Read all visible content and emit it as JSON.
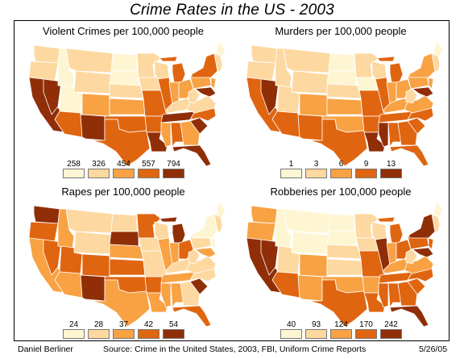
{
  "title": "Crime Rates in the US - 2003",
  "footer": {
    "author": "Daniel Berliner",
    "source": "Source: Crime in the United States, 2003, FBI, Uniform Crime Reports",
    "date": "5/26/05"
  },
  "palette": [
    "#fef6d3",
    "#fdd8a0",
    "#f8a244",
    "#e06510",
    "#902e08"
  ],
  "panels": [
    {
      "title": "Violent Crimes per 100,000 people",
      "legend": [
        "258",
        "326",
        "454",
        "557",
        "794"
      ],
      "states": {
        "WA": 1,
        "OR": 1,
        "CA": 4,
        "NV": 4,
        "ID": 0,
        "MT": 1,
        "WY": 1,
        "UT": 0,
        "AZ": 3,
        "CO": 2,
        "NM": 4,
        "ND": 0,
        "SD": 0,
        "NE": 1,
        "KS": 2,
        "OK": 3,
        "TX": 3,
        "MN": 1,
        "IA": 1,
        "MO": 3,
        "AR": 3,
        "LA": 4,
        "WI": 1,
        "IL": 3,
        "MI": 3,
        "IN": 2,
        "OH": 2,
        "KY": 1,
        "TN": 4,
        "MS": 2,
        "AL": 3,
        "GA": 2,
        "FL": 4,
        "SC": 4,
        "NC": 3,
        "VA": 1,
        "WV": 1,
        "PA": 2,
        "NY": 3,
        "ME": 0,
        "NE_ENG": 1,
        "NJ": 2,
        "MD": 4
      }
    },
    {
      "title": "Murders per 100,000 people",
      "legend": [
        "1",
        "3",
        "6",
        "9",
        "13"
      ],
      "states": {
        "WA": 1,
        "OR": 1,
        "CA": 3,
        "NV": 4,
        "ID": 1,
        "MT": 1,
        "WY": 1,
        "UT": 1,
        "AZ": 3,
        "CO": 2,
        "NM": 3,
        "ND": 0,
        "SD": 0,
        "NE": 1,
        "KS": 2,
        "OK": 2,
        "TX": 3,
        "MN": 1,
        "IA": 0,
        "MO": 3,
        "AR": 3,
        "LA": 4,
        "WI": 1,
        "IL": 3,
        "MI": 3,
        "IN": 2,
        "OH": 2,
        "KY": 2,
        "TN": 3,
        "MS": 4,
        "AL": 3,
        "GA": 3,
        "FL": 3,
        "SC": 3,
        "NC": 3,
        "VA": 2,
        "WV": 1,
        "PA": 2,
        "NY": 2,
        "ME": 0,
        "NE_ENG": 1,
        "NJ": 2,
        "MD": 4
      }
    },
    {
      "title": "Rapes per 100,000 people",
      "legend": [
        "24",
        "28",
        "37",
        "42",
        "54"
      ],
      "states": {
        "WA": 4,
        "OR": 3,
        "CA": 2,
        "NV": 3,
        "ID": 2,
        "MT": 1,
        "WY": 1,
        "UT": 3,
        "AZ": 2,
        "CO": 3,
        "NM": 4,
        "ND": 1,
        "SD": 4,
        "NE": 2,
        "KS": 3,
        "OK": 3,
        "TX": 2,
        "MN": 3,
        "IA": 1,
        "MO": 1,
        "AR": 3,
        "LA": 2,
        "WI": 1,
        "IL": 2,
        "MI": 4,
        "IN": 2,
        "OH": 3,
        "KY": 1,
        "TN": 2,
        "MS": 2,
        "AL": 2,
        "GA": 1,
        "FL": 3,
        "SC": 4,
        "NC": 1,
        "VA": 1,
        "WV": 1,
        "PA": 1,
        "NY": 0,
        "ME": 0,
        "NE_ENG": 1,
        "NJ": 0,
        "MD": 2
      }
    },
    {
      "title": "Robberies per 100,000 people",
      "legend": [
        "40",
        "93",
        "124",
        "170",
        "242"
      ],
      "states": {
        "WA": 2,
        "OR": 2,
        "CA": 4,
        "NV": 4,
        "ID": 0,
        "MT": 0,
        "WY": 0,
        "UT": 1,
        "AZ": 3,
        "CO": 2,
        "NM": 2,
        "ND": 0,
        "SD": 0,
        "NE": 1,
        "KS": 1,
        "OK": 2,
        "TX": 3,
        "MN": 1,
        "IA": 1,
        "MO": 3,
        "AR": 2,
        "LA": 3,
        "WI": 1,
        "IL": 4,
        "MI": 3,
        "IN": 2,
        "OH": 3,
        "KY": 2,
        "TN": 3,
        "MS": 3,
        "AL": 3,
        "GA": 3,
        "FL": 4,
        "SC": 3,
        "NC": 3,
        "VA": 2,
        "WV": 1,
        "PA": 3,
        "NY": 4,
        "ME": 0,
        "NE_ENG": 1,
        "NJ": 3,
        "MD": 4
      }
    }
  ]
}
